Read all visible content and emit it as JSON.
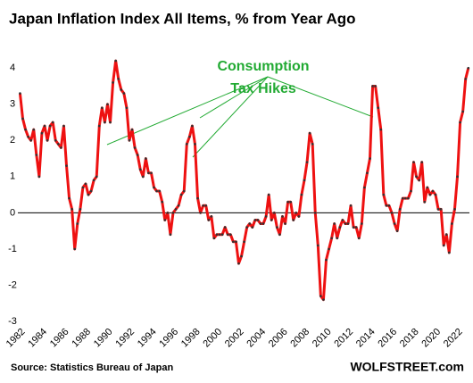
{
  "chart_data": {
    "type": "line",
    "title": "Japan Inflation Index All Items, % from Year Ago",
    "annotation_lines": [
      "Consumption",
      "Tax Hikes"
    ],
    "source": "Source: Statistics Bureau of Japan",
    "watermark": "WOLFSTREET.com",
    "x": [
      1982,
      1982.25,
      1982.5,
      1982.75,
      1983,
      1983.25,
      1983.5,
      1983.75,
      1984,
      1984.25,
      1984.5,
      1984.75,
      1985,
      1985.25,
      1985.5,
      1985.75,
      1986,
      1986.25,
      1986.5,
      1986.75,
      1987,
      1987.25,
      1987.5,
      1987.75,
      1988,
      1988.25,
      1988.5,
      1988.75,
      1989,
      1989.25,
      1989.5,
      1989.75,
      1990,
      1990.25,
      1990.5,
      1990.75,
      1991,
      1991.25,
      1991.5,
      1991.75,
      1992,
      1992.25,
      1992.5,
      1992.75,
      1993,
      1993.25,
      1993.5,
      1993.75,
      1994,
      1994.25,
      1994.5,
      1994.75,
      1995,
      1995.25,
      1995.5,
      1995.75,
      1996,
      1996.25,
      1996.5,
      1996.75,
      1997,
      1997.25,
      1997.5,
      1997.75,
      1998,
      1998.25,
      1998.5,
      1998.75,
      1999,
      1999.25,
      1999.5,
      1999.75,
      2000,
      2000.25,
      2000.5,
      2000.75,
      2001,
      2001.25,
      2001.5,
      2001.75,
      2002,
      2002.25,
      2002.5,
      2002.75,
      2003,
      2003.25,
      2003.5,
      2003.75,
      2004,
      2004.25,
      2004.5,
      2004.75,
      2005,
      2005.25,
      2005.5,
      2005.75,
      2006,
      2006.25,
      2006.5,
      2006.75,
      2007,
      2007.25,
      2007.5,
      2007.75,
      2008,
      2008.25,
      2008.5,
      2008.75,
      2009,
      2009.25,
      2009.5,
      2009.75,
      2010,
      2010.25,
      2010.5,
      2010.75,
      2011,
      2011.25,
      2011.5,
      2011.75,
      2012,
      2012.25,
      2012.5,
      2012.75,
      2013,
      2013.25,
      2013.5,
      2013.75,
      2014,
      2014.25,
      2014.5,
      2014.75,
      2015,
      2015.25,
      2015.5,
      2015.75,
      2016,
      2016.25,
      2016.5,
      2016.75,
      2017,
      2017.25,
      2017.5,
      2017.75,
      2018,
      2018.25,
      2018.5,
      2018.75,
      2019,
      2019.25,
      2019.5,
      2019.75,
      2020,
      2020.25,
      2020.5,
      2020.75,
      2021,
      2021.25,
      2021.5,
      2021.75,
      2022,
      2022.25,
      2022.5,
      2022.75,
      2023
    ],
    "series": [
      {
        "color": "#ee1111",
        "values": [
          3.3,
          2.6,
          2.3,
          2.1,
          2.0,
          2.3,
          1.6,
          1.0,
          2.2,
          2.4,
          2.0,
          2.4,
          2.5,
          2.0,
          1.9,
          1.8,
          2.4,
          1.3,
          0.4,
          0.1,
          -1.0,
          -0.3,
          0.1,
          0.7,
          0.8,
          0.5,
          0.6,
          0.9,
          1.0,
          2.4,
          2.9,
          2.5,
          3.0,
          2.5,
          3.6,
          4.2,
          3.7,
          3.4,
          3.3,
          2.9,
          2.0,
          2.3,
          1.8,
          1.6,
          1.2,
          1.0,
          1.5,
          1.1,
          1.1,
          0.7,
          0.6,
          0.6,
          0.3,
          -0.2,
          0.0,
          -0.6,
          0.0,
          0.1,
          0.2,
          0.5,
          0.6,
          1.9,
          2.1,
          2.4,
          1.9,
          0.4,
          0.0,
          0.2,
          0.2,
          -0.2,
          -0.1,
          -0.7,
          -0.6,
          -0.6,
          -0.6,
          -0.4,
          -0.6,
          -0.6,
          -0.8,
          -0.8,
          -1.4,
          -1.2,
          -0.8,
          -0.4,
          -0.3,
          -0.4,
          -0.2,
          -0.2,
          -0.3,
          -0.3,
          -0.1,
          0.5,
          -0.2,
          0.0,
          -0.4,
          -0.6,
          -0.1,
          -0.3,
          0.3,
          0.3,
          -0.2,
          0.0,
          -0.1,
          0.5,
          0.9,
          1.4,
          2.2,
          1.9,
          0.0,
          -0.9,
          -2.3,
          -2.4,
          -1.3,
          -1.0,
          -0.7,
          -0.3,
          -0.7,
          -0.4,
          -0.2,
          -0.3,
          -0.3,
          0.2,
          -0.4,
          -0.4,
          -0.7,
          -0.3,
          0.7,
          1.1,
          1.5,
          3.5,
          3.5,
          2.9,
          2.3,
          0.5,
          0.2,
          0.2,
          0.0,
          -0.3,
          -0.5,
          0.1,
          0.4,
          0.4,
          0.4,
          0.6,
          1.4,
          1.0,
          0.9,
          1.4,
          0.3,
          0.7,
          0.5,
          0.6,
          0.5,
          0.1,
          0.1,
          -0.9,
          -0.6,
          -1.1,
          -0.3,
          0.1,
          1.0,
          2.5,
          2.8,
          3.7,
          4.0
        ]
      }
    ],
    "xlim": [
      1981.8,
      2023.1
    ],
    "ylim": [
      -3,
      4.4
    ],
    "xticks": [
      1982,
      1984,
      1986,
      1988,
      1990,
      1992,
      1994,
      1996,
      1998,
      2000,
      2002,
      2004,
      2006,
      2008,
      2010,
      2012,
      2014,
      2016,
      2018,
      2020,
      2022
    ],
    "yticks": [
      -3,
      -2,
      -1,
      0,
      1,
      2,
      3,
      4
    ],
    "zero_line": true
  }
}
